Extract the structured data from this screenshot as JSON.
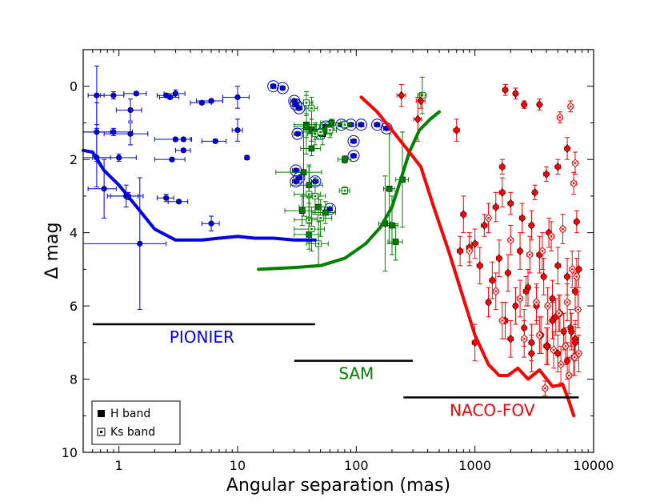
{
  "chart_data": {
    "type": "scatter",
    "xscale": "log",
    "xlim": [
      0.5,
      10000
    ],
    "ylim": [
      10,
      -1
    ],
    "xlabel": "Angular separation (mas)",
    "ylabel": "Δ mag",
    "xticks": [
      1,
      10,
      100,
      1000,
      10000
    ],
    "xtick_labels": [
      "1",
      "10",
      "100",
      "1000",
      "10000"
    ],
    "yticks": [
      0,
      2,
      4,
      6,
      8,
      10
    ],
    "ytick_labels": [
      "0",
      "2",
      "4",
      "6",
      "8",
      "10"
    ],
    "colors": {
      "pionier": "#0000ee",
      "sam": "#008000",
      "naco": "#ff0000",
      "black": "#000000"
    },
    "legend": {
      "position": "bottom-left",
      "entries": [
        {
          "label": "H band",
          "marker": "filled-square"
        },
        {
          "label": "Ks band",
          "marker": "dotted-square"
        }
      ]
    },
    "instruments": [
      {
        "name": "PIONIER",
        "color": "#0000ee",
        "range_mas": [
          0.6,
          45
        ],
        "bar_dmag": 6.5,
        "label_x": 5,
        "label_dmag": 7.0
      },
      {
        "name": "SAM",
        "color": "#008000",
        "range_mas": [
          30,
          300
        ],
        "bar_dmag": 7.5,
        "label_x": 100,
        "label_dmag": 8.0
      },
      {
        "name": "NACO-FOV",
        "color": "#ff0000",
        "range_mas": [
          250,
          7500
        ],
        "bar_dmag": 8.5,
        "label_x": 1400,
        "label_dmag": 9.0
      }
    ],
    "series": [
      {
        "name": "PIONIER detection limit",
        "kind": "line",
        "color": "#0000ee",
        "x": [
          0.5,
          0.6,
          0.75,
          1.0,
          1.5,
          2.0,
          3.0,
          5.0,
          7.0,
          10.0,
          14.0,
          20.0,
          30.0,
          45.0
        ],
        "y": [
          1.75,
          1.8,
          2.3,
          2.7,
          3.4,
          3.9,
          4.2,
          4.2,
          4.15,
          4.1,
          4.15,
          4.15,
          4.2,
          4.2
        ]
      },
      {
        "name": "SAM detection limit",
        "kind": "line",
        "color": "#008000",
        "x": [
          15,
          30,
          50,
          80,
          120,
          160,
          200,
          240,
          280,
          340,
          420,
          500
        ],
        "y": [
          5.0,
          4.95,
          4.9,
          4.7,
          4.3,
          3.85,
          3.3,
          2.5,
          1.8,
          1.2,
          0.9,
          0.7
        ]
      },
      {
        "name": "NACO-FOV detection limit",
        "kind": "line",
        "color": "#ff0000",
        "x": [
          110,
          150,
          200,
          280,
          350,
          450,
          600,
          800,
          1000,
          1300,
          1600,
          1900,
          2300,
          2800,
          3500,
          4500,
          5500,
          6200,
          6800
        ],
        "y": [
          0.3,
          0.7,
          1.2,
          1.8,
          2.2,
          3.3,
          4.5,
          5.8,
          6.8,
          7.6,
          7.9,
          7.9,
          7.7,
          8.0,
          7.75,
          8.2,
          8.15,
          8.6,
          9.0
        ]
      },
      {
        "name": "PIONIER companions",
        "kind": "points",
        "color": "#0000ee",
        "marker": "circle",
        "x": [
          0.65,
          0.9,
          1.25,
          1.4,
          2.5,
          2.7,
          3.0,
          5.0,
          6.0,
          10.0,
          0.65,
          0.9,
          1.25,
          3.0,
          3.5,
          6.5,
          10.0,
          0.65,
          1.0,
          1.15,
          2.8,
          3.5,
          12.0,
          0.75,
          1.2,
          2.5,
          3.2,
          6.0,
          1.5
        ],
        "y": [
          0.25,
          0.25,
          0.65,
          0.2,
          0.25,
          0.3,
          0.2,
          0.45,
          0.4,
          0.3,
          1.25,
          1.25,
          1.3,
          1.45,
          1.75,
          1.5,
          1.2,
          1.95,
          1.95,
          3.0,
          2.0,
          1.45,
          1.95,
          2.8,
          3.0,
          3.05,
          3.15,
          3.75,
          4.3
        ],
        "xerr": [
          0.1,
          0.2,
          0.3,
          0.3,
          0.4,
          0.5,
          0.6,
          1.0,
          1.5,
          2.5,
          0.2,
          0.4,
          0.5,
          1.0,
          0.5,
          1.5,
          1.0,
          0.2,
          0.4,
          0.3,
          0.8,
          0.6,
          0.5,
          0.2,
          0.4,
          0.4,
          0.6,
          1.0,
          1.0
        ],
        "yerr": [
          0.8,
          0.1,
          0.3,
          0.05,
          0.05,
          0.05,
          0.1,
          0.05,
          0.05,
          0.3,
          0.8,
          0.1,
          0.3,
          0.05,
          0.05,
          0.05,
          0.3,
          0.8,
          0.1,
          0.3,
          0.05,
          0.05,
          0.05,
          0.8,
          0.1,
          0.1,
          0.05,
          0.2,
          1.8
        ]
      },
      {
        "name": "PIONIER circled companions",
        "kind": "points",
        "color": "#0000ee",
        "marker": "circle-ringed",
        "x": [
          20,
          24,
          30,
          31,
          33,
          32,
          31,
          33,
          31,
          45,
          55,
          60,
          75,
          95,
          110,
          150,
          180,
          90,
          95,
          50
        ],
        "y": [
          0.0,
          0.05,
          0.4,
          0.5,
          0.6,
          1.3,
          2.3,
          2.5,
          2.6,
          2.6,
          1.1,
          3.35,
          1.05,
          1.5,
          1.05,
          1.05,
          1.15,
          1.05,
          1.9,
          1.3
        ],
        "xerr": [
          1,
          1,
          2,
          2,
          2,
          2,
          2,
          2,
          2,
          3,
          3,
          3,
          4,
          5,
          6,
          8,
          10,
          5,
          5,
          3
        ],
        "yerr": [
          0.05,
          0.05,
          0.05,
          0.05,
          0.05,
          0.05,
          0.05,
          0.05,
          0.05,
          0.05,
          0.05,
          0.05,
          0.05,
          0.05,
          0.05,
          0.05,
          0.05,
          0.05,
          0.05,
          0.05
        ]
      },
      {
        "name": "SAM H band",
        "kind": "points",
        "color": "#008000",
        "marker": "square",
        "x": [
          38,
          42,
          45,
          52,
          57,
          62,
          36,
          40,
          48,
          35,
          40,
          55,
          38,
          42,
          190,
          200,
          215,
          175,
          245,
          80
        ],
        "y": [
          1.05,
          1.2,
          1.25,
          1.3,
          1.15,
          1.0,
          2.35,
          2.7,
          3.3,
          3.4,
          4.05,
          3.45,
          1.1,
          1.7,
          2.8,
          3.8,
          4.25,
          3.75,
          2.55,
          2.0
        ],
        "xerr": [
          8,
          6,
          10,
          10,
          8,
          12,
          15,
          12,
          15,
          10,
          10,
          12,
          8,
          8,
          20,
          25,
          30,
          20,
          30,
          10
        ],
        "yerr": [
          0.8,
          0.3,
          0.2,
          0.3,
          0.1,
          0.1,
          1.2,
          0.5,
          0.3,
          0.4,
          0.4,
          0.3,
          0.3,
          0.2,
          1.5,
          0.8,
          0.5,
          1.3,
          1.3,
          0.1
        ]
      },
      {
        "name": "SAM Ks band",
        "kind": "points",
        "color": "#008000",
        "marker": "dotted-square",
        "x": [
          38,
          42,
          45,
          50,
          60,
          80,
          40,
          45,
          80,
          40,
          42,
          48,
          50,
          360
        ],
        "y": [
          0.45,
          0.6,
          1.3,
          1.25,
          1.2,
          1.05,
          2.95,
          3.0,
          2.85,
          3.65,
          3.9,
          4.3,
          3.6,
          0.25
        ],
        "xerr": [
          5,
          5,
          6,
          6,
          8,
          10,
          10,
          10,
          8,
          10,
          12,
          10,
          12,
          30
        ],
        "yerr": [
          0.3,
          0.3,
          0.3,
          0.2,
          0.2,
          0.1,
          0.8,
          0.5,
          0.1,
          0.6,
          0.6,
          0.6,
          0.5,
          0.5
        ]
      },
      {
        "name": "NACO H band",
        "kind": "points",
        "color": "#ff0000",
        "marker": "diamond",
        "x": [
          240,
          330,
          350,
          700,
          1800,
          2200,
          2600,
          3500,
          4000,
          5000,
          6000,
          7200,
          1700,
          3200,
          800,
          900,
          1000,
          1200,
          1500,
          1700,
          2000,
          2500,
          3000,
          3500,
          4200,
          5000,
          6000,
          7000,
          7500,
          750,
          1100,
          1400,
          1600,
          1900,
          2400,
          2800,
          3300,
          3800,
          4500,
          5200,
          6400,
          7000,
          1800,
          2200,
          2600,
          3000,
          3600,
          4100,
          4800,
          5600,
          6800,
          1000,
          2000,
          3000,
          4000,
          5000,
          6000,
          7000,
          1300,
          2700,
          4500,
          6500
        ],
        "y": [
          0.25,
          0.9,
          0.4,
          1.2,
          0.1,
          0.2,
          0.5,
          0.5,
          2.4,
          2.2,
          1.7,
          3.7,
          2.2,
          2.9,
          3.5,
          4.4,
          4.3,
          3.8,
          3.3,
          2.9,
          3.2,
          3.6,
          3.8,
          4.6,
          4.0,
          4.9,
          5.2,
          5.6,
          5.0,
          4.5,
          4.9,
          5.3,
          4.7,
          5.1,
          4.5,
          5.5,
          6.0,
          5.2,
          5.8,
          6.2,
          6.6,
          6.9,
          6.4,
          6.0,
          6.6,
          7.0,
          6.8,
          7.1,
          6.3,
          6.7,
          7.4,
          7.0,
          6.9,
          7.3,
          7.1,
          7.3,
          7.5,
          7.0,
          5.9,
          5.6,
          6.4,
          6.7
        ],
        "xerr": [
          20,
          25,
          30,
          40,
          80,
          100,
          120,
          150,
          200,
          250,
          300,
          350,
          80,
          150,
          40,
          50,
          60,
          70,
          80,
          90,
          100,
          120,
          150,
          180,
          200,
          250,
          300,
          350,
          350,
          40,
          60,
          70,
          80,
          90,
          110,
          130,
          160,
          180,
          200,
          250,
          300,
          350,
          80,
          100,
          120,
          150,
          160,
          200,
          220,
          250,
          300,
          50,
          100,
          150,
          180,
          220,
          280,
          330,
          60,
          130,
          220,
          300
        ],
        "yerr": [
          0.3,
          0.6,
          0.2,
          0.3,
          0.15,
          0.15,
          0.1,
          0.15,
          0.2,
          0.2,
          0.3,
          0.3,
          0.2,
          0.2,
          0.5,
          0.4,
          0.4,
          0.3,
          0.4,
          0.4,
          0.3,
          0.4,
          0.4,
          0.5,
          0.4,
          0.5,
          0.5,
          0.5,
          0.5,
          0.4,
          0.5,
          0.5,
          0.5,
          0.5,
          0.5,
          0.5,
          0.5,
          0.5,
          0.5,
          0.5,
          0.5,
          0.5,
          0.5,
          0.5,
          0.5,
          0.5,
          0.5,
          0.5,
          0.5,
          0.5,
          0.5,
          0.5,
          0.5,
          0.5,
          0.5,
          0.5,
          0.5,
          0.5,
          0.4,
          0.4,
          0.5,
          0.5
        ]
      },
      {
        "name": "NACO Ks band",
        "kind": "points",
        "color": "#ff0000",
        "marker": "dotted-diamond",
        "x": [
          5200,
          6400,
          7000,
          6800,
          1300,
          2000,
          2900,
          3700,
          4400,
          5500,
          6600,
          7200,
          900,
          1500,
          2400,
          3300,
          4100,
          5100,
          6000,
          7400,
          1700,
          2600,
          3500,
          4600,
          5800,
          6900,
          3900,
          5300,
          6200,
          7500
        ],
        "y": [
          0.85,
          0.55,
          2.1,
          2.65,
          3.6,
          4.2,
          4.6,
          4.5,
          4.1,
          3.9,
          5.0,
          5.2,
          4.5,
          5.6,
          5.8,
          5.9,
          6.0,
          6.2,
          5.9,
          6.1,
          6.4,
          6.9,
          6.8,
          7.2,
          7.1,
          7.4,
          8.25,
          7.6,
          7.9,
          7.3
        ],
        "xerr": [
          250,
          300,
          350,
          350,
          60,
          100,
          150,
          180,
          220,
          250,
          300,
          350,
          40,
          70,
          120,
          160,
          200,
          250,
          300,
          350,
          80,
          130,
          170,
          220,
          280,
          330,
          180,
          250,
          300,
          350
        ],
        "yerr": [
          0.15,
          0.15,
          0.3,
          0.3,
          0.4,
          0.4,
          0.5,
          0.5,
          0.4,
          0.4,
          0.5,
          0.5,
          0.4,
          0.5,
          0.5,
          0.5,
          0.5,
          0.5,
          0.5,
          0.5,
          0.5,
          0.5,
          0.5,
          0.5,
          0.5,
          0.5,
          0.2,
          0.5,
          0.5,
          0.5
        ]
      }
    ]
  }
}
